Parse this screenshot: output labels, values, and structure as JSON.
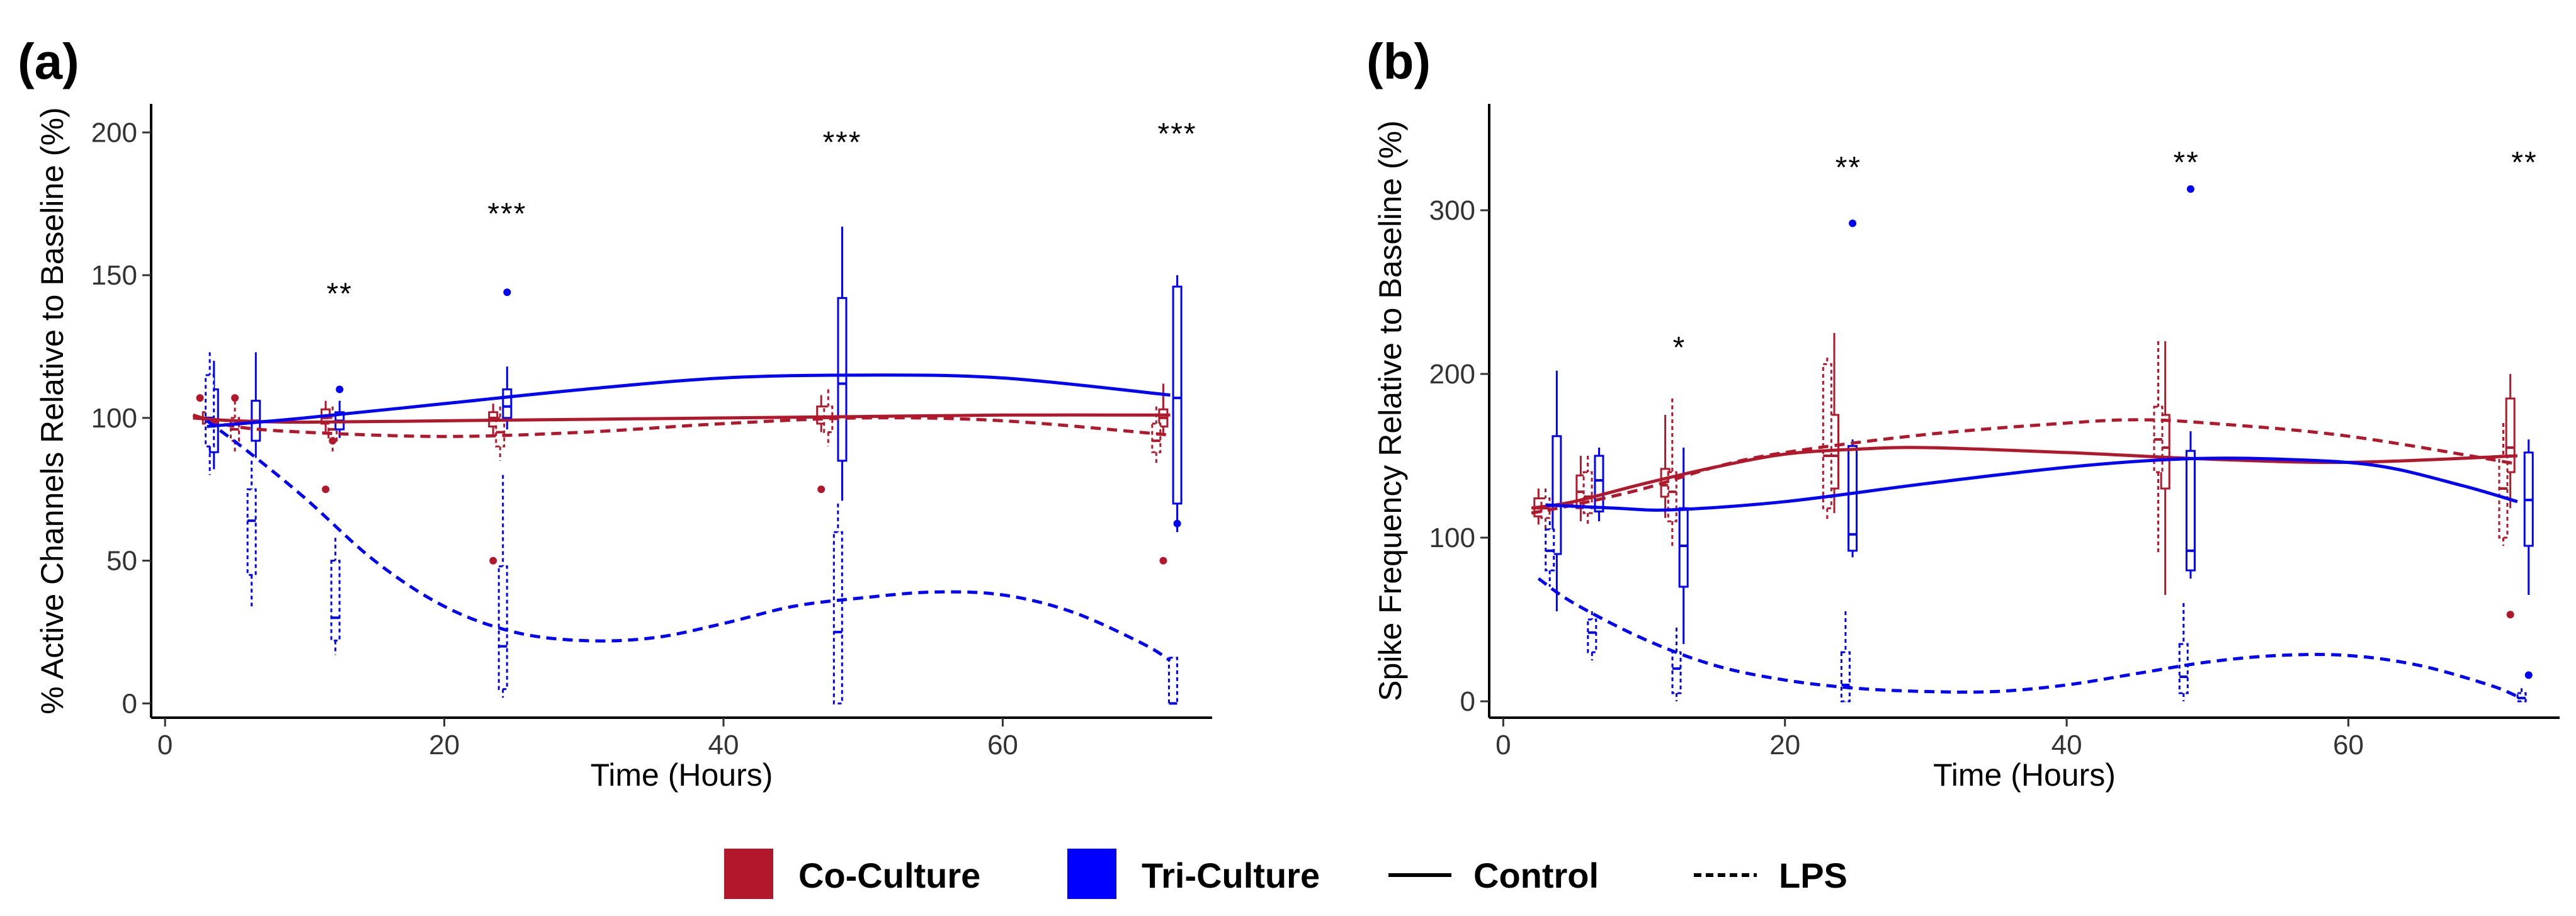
{
  "colors": {
    "coculture": "#B2182B",
    "triculture": "#0000FF",
    "axis": "#000000"
  },
  "legend": [
    {
      "label": "Co-Culture",
      "kind": "fill",
      "color": "#B2182B"
    },
    {
      "label": "Tri-Culture",
      "kind": "fill",
      "color": "#0000FF"
    },
    {
      "label": "Control",
      "kind": "solid"
    },
    {
      "label": "LPS",
      "kind": "dotted"
    }
  ],
  "chart_data": [
    {
      "panel_label": "(a)",
      "type": "box+line",
      "xlabel": "Time (Hours)",
      "ylabel": "% Active Channels Relative to Baseline (%)",
      "xlim": [
        -1,
        75
      ],
      "ylim": [
        -5,
        210
      ],
      "xticks": [
        0,
        20,
        40,
        60
      ],
      "yticks": [
        0,
        50,
        100,
        150,
        200
      ],
      "significance": [
        {
          "x": 12.5,
          "y": 140,
          "label": "**"
        },
        {
          "x": 24.5,
          "y": 168,
          "label": "***"
        },
        {
          "x": 48.5,
          "y": 193,
          "label": "***"
        },
        {
          "x": 72.5,
          "y": 196,
          "label": "***"
        }
      ],
      "series": [
        {
          "name": "Co-Culture Control",
          "color_key": "coculture",
          "dash": false,
          "curve": [
            [
              2,
              100
            ],
            [
              5,
              99
            ],
            [
              10,
              98.5
            ],
            [
              20,
              99
            ],
            [
              30,
              99.5
            ],
            [
              40,
              100
            ],
            [
              50,
              100.5
            ],
            [
              60,
              101
            ],
            [
              72,
              101
            ]
          ],
          "boxes": [
            {
              "x": 3,
              "q1": 98,
              "median": 100,
              "q3": 102,
              "lo": 96,
              "hi": 104
            },
            {
              "x": 11.5,
              "q1": 98,
              "median": 100,
              "q3": 103,
              "lo": 95,
              "hi": 106
            },
            {
              "x": 23.5,
              "q1": 97,
              "median": 100,
              "q3": 102,
              "lo": 94,
              "hi": 105
            },
            {
              "x": 47,
              "q1": 98,
              "median": 100,
              "q3": 104,
              "lo": 95,
              "hi": 108
            },
            {
              "x": 71.5,
              "q1": 97,
              "median": 100,
              "q3": 103,
              "lo": 94,
              "hi": 112
            }
          ],
          "outliers": [
            [
              11.5,
              75
            ],
            [
              23.5,
              50
            ],
            [
              47,
              75
            ],
            [
              71.5,
              50
            ],
            [
              2.5,
              107
            ]
          ]
        },
        {
          "name": "Co-Culture LPS",
          "color_key": "coculture",
          "dash": true,
          "curve": [
            [
              2,
              101
            ],
            [
              5,
              97
            ],
            [
              10,
              95
            ],
            [
              20,
              93.5
            ],
            [
              30,
              95
            ],
            [
              40,
              98
            ],
            [
              50,
              100
            ],
            [
              60,
              99
            ],
            [
              72,
              94
            ]
          ],
          "boxes": [
            {
              "x": 5,
              "q1": 92,
              "median": 96,
              "q3": 100,
              "lo": 88,
              "hi": 106
            },
            {
              "x": 12,
              "q1": 92,
              "median": 96,
              "q3": 100,
              "lo": 88,
              "hi": 104
            },
            {
              "x": 24,
              "q1": 90,
              "median": 95,
              "q3": 100,
              "lo": 85,
              "hi": 104
            },
            {
              "x": 47.5,
              "q1": 95,
              "median": 100,
              "q3": 104,
              "lo": 90,
              "hi": 110
            },
            {
              "x": 71,
              "q1": 88,
              "median": 92,
              "q3": 98,
              "lo": 84,
              "hi": 104
            }
          ],
          "outliers": [
            [
              5,
              107
            ],
            [
              12,
              92
            ]
          ]
        },
        {
          "name": "Tri-Culture Control",
          "color_key": "triculture",
          "dash": false,
          "curve": [
            [
              3,
              97
            ],
            [
              10,
              100
            ],
            [
              20,
              105
            ],
            [
              30,
              110
            ],
            [
              40,
              114
            ],
            [
              50,
              115
            ],
            [
              60,
              114
            ],
            [
              72,
              108
            ]
          ],
          "boxes": [
            {
              "x": 3.5,
              "q1": 88,
              "median": 98,
              "q3": 110,
              "lo": 82,
              "hi": 120
            },
            {
              "x": 6.5,
              "q1": 92,
              "median": 99,
              "q3": 106,
              "lo": 86,
              "hi": 123
            },
            {
              "x": 12.5,
              "q1": 96,
              "median": 99,
              "q3": 102,
              "lo": 93,
              "hi": 106
            },
            {
              "x": 24.5,
              "q1": 100,
              "median": 104,
              "q3": 110,
              "lo": 96,
              "hi": 118
            },
            {
              "x": 48.5,
              "q1": 85,
              "median": 112,
              "q3": 142,
              "lo": 71,
              "hi": 167
            },
            {
              "x": 72.5,
              "q1": 70,
              "median": 107,
              "q3": 146,
              "lo": 60,
              "hi": 150
            }
          ],
          "outliers": [
            [
              12.5,
              110
            ],
            [
              24.5,
              144
            ],
            [
              72.5,
              63
            ]
          ]
        },
        {
          "name": "Tri-Culture LPS",
          "color_key": "triculture",
          "dash": true,
          "curve": [
            [
              3,
              99
            ],
            [
              6,
              88
            ],
            [
              10,
              72
            ],
            [
              15,
              50
            ],
            [
              20,
              34
            ],
            [
              25,
              25
            ],
            [
              30,
              22
            ],
            [
              35,
              23
            ],
            [
              40,
              28
            ],
            [
              45,
              34
            ],
            [
              50,
              37
            ],
            [
              55,
              39
            ],
            [
              60,
              38
            ],
            [
              65,
              32
            ],
            [
              70,
              21
            ],
            [
              72,
              15
            ]
          ],
          "boxes": [
            {
              "x": 3.2,
              "q1": 90,
              "median": 100,
              "q3": 115,
              "lo": 80,
              "hi": 123
            },
            {
              "x": 6.2,
              "q1": 45,
              "median": 64,
              "q3": 75,
              "lo": 34,
              "hi": 85
            },
            {
              "x": 12.2,
              "q1": 22,
              "median": 30,
              "q3": 50,
              "lo": 17,
              "hi": 58
            },
            {
              "x": 24.2,
              "q1": 5,
              "median": 20,
              "q3": 48,
              "lo": 2,
              "hi": 80
            },
            {
              "x": 48.2,
              "q1": 0,
              "median": 25,
              "q3": 60,
              "lo": 0,
              "hi": 70
            },
            {
              "x": 72.2,
              "q1": 0,
              "median": 0,
              "q3": 16,
              "lo": 0,
              "hi": 16
            }
          ],
          "outliers": []
        }
      ]
    },
    {
      "panel_label": "(b)",
      "type": "box+line",
      "xlabel": "Time (Hours)",
      "ylabel": "Spike Frequency Relative to Baseline (%)",
      "xlim": [
        -1,
        75
      ],
      "ylim": [
        -10,
        365
      ],
      "xticks": [
        0,
        20,
        40,
        60
      ],
      "yticks": [
        0,
        100,
        200,
        300
      ],
      "significance": [
        {
          "x": 12.5,
          "y": 210,
          "label": "*"
        },
        {
          "x": 24.5,
          "y": 320,
          "label": "**"
        },
        {
          "x": 48.5,
          "y": 323,
          "label": "**"
        },
        {
          "x": 72.5,
          "y": 323,
          "label": "**"
        }
      ],
      "series": [
        {
          "name": "Co-Culture Control",
          "color_key": "coculture",
          "dash": false,
          "curve": [
            [
              2,
              118
            ],
            [
              5,
              122
            ],
            [
              10,
              133
            ],
            [
              15,
              143
            ],
            [
              20,
              151
            ],
            [
              25,
              154
            ],
            [
              30,
              155
            ],
            [
              40,
              152
            ],
            [
              50,
              148
            ],
            [
              60,
              146
            ],
            [
              72,
              150
            ]
          ],
          "boxes": [
            {
              "x": 2.5,
              "q1": 113,
              "median": 118,
              "q3": 124,
              "lo": 108,
              "hi": 130
            },
            {
              "x": 5.5,
              "q1": 118,
              "median": 128,
              "q3": 138,
              "lo": 110,
              "hi": 150
            },
            {
              "x": 11.5,
              "q1": 125,
              "median": 132,
              "q3": 142,
              "lo": 112,
              "hi": 175
            },
            {
              "x": 23.5,
              "q1": 130,
              "median": 150,
              "q3": 175,
              "lo": 115,
              "hi": 225
            },
            {
              "x": 47,
              "q1": 130,
              "median": 155,
              "q3": 175,
              "lo": 65,
              "hi": 220
            },
            {
              "x": 71.5,
              "q1": 140,
              "median": 155,
              "q3": 185,
              "lo": 118,
              "hi": 200
            }
          ],
          "outliers": [
            [
              71.5,
              53
            ]
          ]
        },
        {
          "name": "Co-Culture LPS",
          "color_key": "coculture",
          "dash": true,
          "curve": [
            [
              2,
              115
            ],
            [
              5,
              120
            ],
            [
              10,
              130
            ],
            [
              15,
              143
            ],
            [
              20,
              152
            ],
            [
              30,
              163
            ],
            [
              40,
              170
            ],
            [
              45,
              172
            ],
            [
              50,
              170
            ],
            [
              60,
              162
            ],
            [
              72,
              145
            ]
          ],
          "boxes": [
            {
              "x": 3,
              "q1": 112,
              "median": 118,
              "q3": 124,
              "lo": 105,
              "hi": 130
            },
            {
              "x": 6,
              "q1": 115,
              "median": 125,
              "q3": 140,
              "lo": 108,
              "hi": 150
            },
            {
              "x": 12,
              "q1": 110,
              "median": 128,
              "q3": 140,
              "lo": 95,
              "hi": 185
            },
            {
              "x": 23,
              "q1": 118,
              "median": 150,
              "q3": 206,
              "lo": 110,
              "hi": 210
            },
            {
              "x": 46.5,
              "q1": 140,
              "median": 160,
              "q3": 180,
              "lo": 90,
              "hi": 220
            },
            {
              "x": 71,
              "q1": 100,
              "median": 130,
              "q3": 150,
              "lo": 95,
              "hi": 170
            }
          ],
          "outliers": []
        },
        {
          "name": "Tri-Culture Control",
          "color_key": "triculture",
          "dash": false,
          "curve": [
            [
              3,
              120
            ],
            [
              8,
              118
            ],
            [
              12,
              117
            ],
            [
              20,
              122
            ],
            [
              30,
              133
            ],
            [
              40,
              143
            ],
            [
              48,
              148
            ],
            [
              55,
              148
            ],
            [
              62,
              144
            ],
            [
              68,
              132
            ],
            [
              72,
              122
            ]
          ],
          "boxes": [
            {
              "x": 3.8,
              "q1": 90,
              "median": 120,
              "q3": 162,
              "lo": 55,
              "hi": 202
            },
            {
              "x": 6.8,
              "q1": 116,
              "median": 135,
              "q3": 150,
              "lo": 110,
              "hi": 155
            },
            {
              "x": 12.8,
              "q1": 70,
              "median": 95,
              "q3": 118,
              "lo": 35,
              "hi": 155
            },
            {
              "x": 24.8,
              "q1": 92,
              "median": 102,
              "q3": 156,
              "lo": 88,
              "hi": 160
            },
            {
              "x": 48.8,
              "q1": 80,
              "median": 92,
              "q3": 153,
              "lo": 75,
              "hi": 165
            },
            {
              "x": 72.8,
              "q1": 95,
              "median": 123,
              "q3": 152,
              "lo": 65,
              "hi": 160
            }
          ],
          "outliers": [
            [
              24.8,
              292
            ],
            [
              48.8,
              313
            ],
            [
              72.8,
              16
            ]
          ]
        },
        {
          "name": "Tri-Culture LPS",
          "color_key": "triculture",
          "dash": true,
          "curve": [
            [
              2.5,
              75
            ],
            [
              5,
              60
            ],
            [
              10,
              38
            ],
            [
              15,
              22
            ],
            [
              20,
              13
            ],
            [
              25,
              8
            ],
            [
              30,
              6
            ],
            [
              35,
              6
            ],
            [
              40,
              10
            ],
            [
              45,
              17
            ],
            [
              50,
              24
            ],
            [
              55,
              28
            ],
            [
              60,
              28
            ],
            [
              65,
              22
            ],
            [
              70,
              10
            ],
            [
              72,
              3
            ]
          ],
          "boxes": [
            {
              "x": 3.3,
              "q1": 80,
              "median": 92,
              "q3": 105,
              "lo": 70,
              "hi": 110
            },
            {
              "x": 6.3,
              "q1": 30,
              "median": 42,
              "q3": 50,
              "lo": 25,
              "hi": 55
            },
            {
              "x": 12.3,
              "q1": 5,
              "median": 20,
              "q3": 30,
              "lo": 0,
              "hi": 45
            },
            {
              "x": 24.3,
              "q1": 0,
              "median": 10,
              "q3": 30,
              "lo": 0,
              "hi": 55
            },
            {
              "x": 48.3,
              "q1": 5,
              "median": 15,
              "q3": 35,
              "lo": 0,
              "hi": 60
            },
            {
              "x": 72.3,
              "q1": 0,
              "median": 2,
              "q3": 5,
              "lo": 0,
              "hi": 8
            }
          ],
          "outliers": []
        }
      ]
    }
  ]
}
